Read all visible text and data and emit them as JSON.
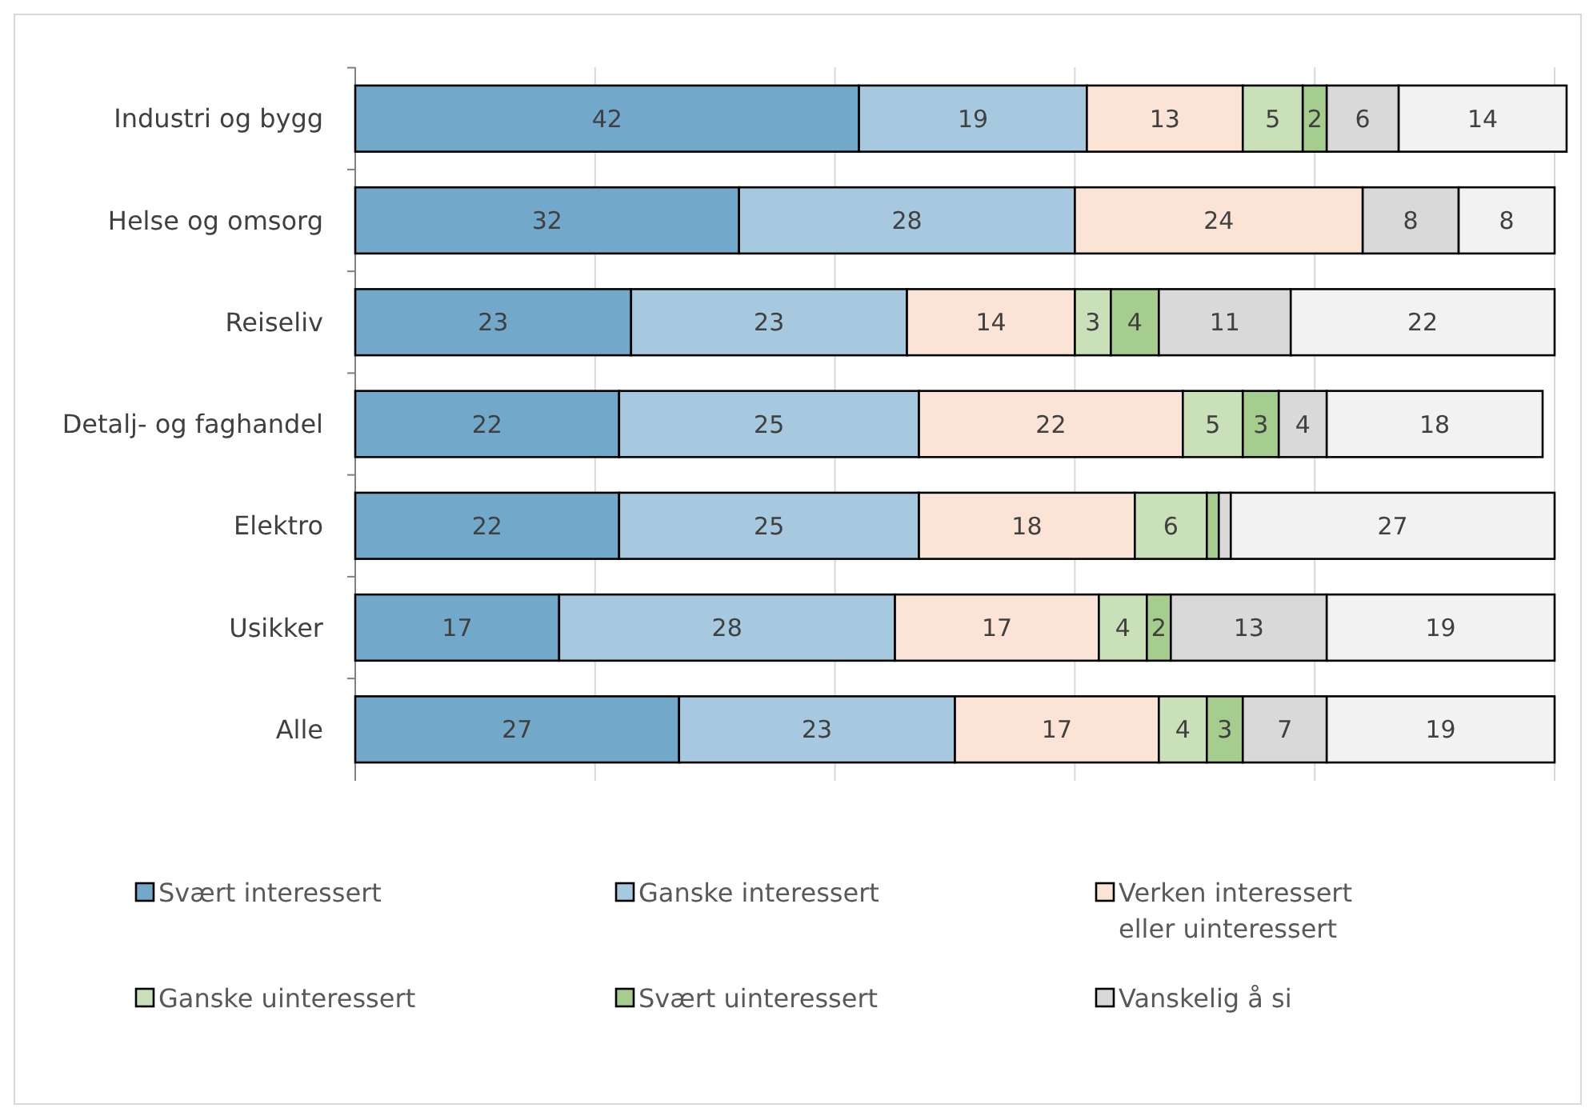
{
  "chart_data": {
    "type": "bar",
    "orientation": "horizontal",
    "stacked": true,
    "categories": [
      "Industri og bygg",
      "Helse og omsorg",
      "Reiseliv",
      "Detalj- og faghandel",
      "Elektro",
      "Usikker",
      "Alle"
    ],
    "series": [
      {
        "name": "Svært interessert",
        "color": "#72a8c9",
        "values": [
          42,
          32,
          23,
          22,
          22,
          17,
          27
        ],
        "value_labels": [
          "42",
          "32",
          "23",
          "22",
          "22",
          "17",
          "27"
        ]
      },
      {
        "name": "Ganske interessert",
        "color": "#a6c9df",
        "values": [
          19,
          28,
          23,
          25,
          25,
          28,
          23
        ],
        "value_labels": [
          "19",
          "28",
          "23",
          "25",
          "25",
          "28",
          "23"
        ]
      },
      {
        "name": "Verken interessert eller uinteressert",
        "color": "#fbe4d5",
        "values": [
          13,
          24,
          14,
          22,
          18,
          17,
          17
        ],
        "value_labels": [
          "13",
          "24",
          "14",
          "22",
          "18",
          "17",
          "17"
        ]
      },
      {
        "name": "Ganske uinteressert",
        "color": "#c9e0b8",
        "values": [
          5,
          null,
          3,
          5,
          6,
          4,
          4
        ],
        "value_labels": [
          "5",
          null,
          "3",
          "5",
          "6",
          "4",
          "4"
        ]
      },
      {
        "name": "Svært uinteressert",
        "color": "#a5cd8e",
        "values": [
          2,
          null,
          4,
          3,
          1,
          2,
          3
        ],
        "value_labels": [
          "2",
          null,
          "4",
          "3",
          null,
          "2",
          "3"
        ]
      },
      {
        "name": "Vanskelig å si",
        "color": "#d9d9d9",
        "values": [
          6,
          8,
          11,
          4,
          1,
          13,
          7
        ],
        "value_labels": [
          "6",
          "8",
          "11",
          "4",
          null,
          "13",
          "7"
        ]
      },
      {
        "color": "#f2f2f2",
        "values": [
          14,
          8,
          22,
          18,
          27,
          19,
          19
        ],
        "value_labels": [
          "14",
          "8",
          "22",
          "18",
          "27",
          "19",
          "19"
        ]
      }
    ],
    "xlim": [
      0,
      101
    ],
    "xticks": [
      {
        "value": 0,
        "label": null
      },
      {
        "value": 20,
        "label": null
      },
      {
        "value": 40,
        "label": null
      },
      {
        "value": 60,
        "label": null
      },
      {
        "value": 80,
        "label": null
      },
      {
        "value": 100,
        "label": null
      }
    ],
    "grid": "x",
    "tick_labels": "y",
    "legend": "bottom"
  }
}
